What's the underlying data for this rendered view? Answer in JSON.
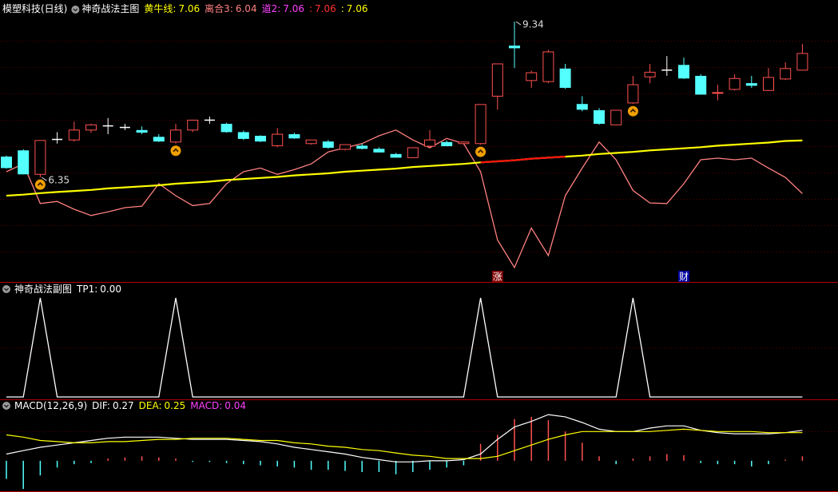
{
  "chart_data": [
    {
      "type": "candlestick",
      "title": "模塑科技(日线)",
      "subtitle": "神奇战法主图",
      "separator": ":",
      "ylim": [
        4.36,
        9.48
      ],
      "up_color": "#ff5050",
      "down_color": "#54ffff",
      "flat_color": "#ffffff",
      "candles": [
        [
          6.75,
          6.77,
          6.52,
          6.53
        ],
        [
          6.87,
          6.89,
          6.41,
          6.41
        ],
        [
          6.41,
          7.06,
          6.35,
          7.06
        ],
        [
          7.07,
          7.22,
          7.0,
          7.08
        ],
        [
          7.07,
          7.42,
          7.04,
          7.26
        ],
        [
          7.26,
          7.38,
          7.21,
          7.36
        ],
        [
          7.33,
          7.49,
          7.18,
          7.34
        ],
        [
          7.3,
          7.38,
          7.26,
          7.31
        ],
        [
          7.26,
          7.33,
          7.18,
          7.21
        ],
        [
          7.13,
          7.18,
          7.03,
          7.04
        ],
        [
          7.03,
          7.38,
          7.0,
          7.26
        ],
        [
          7.26,
          7.45,
          7.22,
          7.45
        ],
        [
          7.45,
          7.52,
          7.38,
          7.45
        ],
        [
          7.38,
          7.4,
          7.21,
          7.22
        ],
        [
          7.22,
          7.25,
          7.07,
          7.09
        ],
        [
          7.15,
          7.16,
          7.03,
          7.04
        ],
        [
          6.96,
          7.3,
          6.93,
          7.18
        ],
        [
          7.18,
          7.21,
          7.09,
          7.1
        ],
        [
          7.0,
          7.07,
          6.98,
          7.07
        ],
        [
          7.04,
          7.07,
          6.9,
          6.92
        ],
        [
          6.89,
          6.98,
          6.87,
          6.98
        ],
        [
          6.96,
          7.0,
          6.89,
          6.9
        ],
        [
          6.9,
          6.93,
          6.83,
          6.83
        ],
        [
          6.8,
          6.82,
          6.73,
          6.73
        ],
        [
          6.73,
          6.92,
          6.72,
          6.92
        ],
        [
          6.95,
          7.26,
          6.93,
          7.07
        ],
        [
          7.03,
          7.06,
          6.95,
          6.95
        ],
        [
          7.0,
          7.04,
          6.98,
          7.03
        ],
        [
          7.0,
          7.75,
          6.98,
          7.75
        ],
        [
          7.91,
          8.53,
          7.65,
          8.53
        ],
        [
          8.88,
          9.34,
          8.45,
          8.83
        ],
        [
          8.21,
          8.4,
          8.07,
          8.36
        ],
        [
          8.19,
          8.8,
          8.16,
          8.76
        ],
        [
          8.44,
          8.53,
          8.05,
          8.07
        ],
        [
          7.76,
          7.91,
          7.62,
          7.65
        ],
        [
          7.64,
          7.68,
          7.36,
          7.38
        ],
        [
          7.36,
          7.64,
          7.36,
          7.64
        ],
        [
          7.78,
          8.3,
          7.76,
          8.13
        ],
        [
          8.28,
          8.53,
          8.16,
          8.37
        ],
        [
          8.42,
          8.68,
          8.3,
          8.41
        ],
        [
          8.51,
          8.65,
          8.24,
          8.25
        ],
        [
          8.3,
          8.33,
          7.94,
          7.94
        ],
        [
          7.97,
          8.13,
          7.83,
          7.98
        ],
        [
          8.04,
          8.33,
          8.02,
          8.25
        ],
        [
          8.16,
          8.3,
          8.07,
          8.11
        ],
        [
          8.02,
          8.45,
          8.01,
          8.27
        ],
        [
          8.24,
          8.56,
          8.22,
          8.44
        ],
        [
          8.41,
          8.91,
          8.4,
          8.73
        ]
      ],
      "series": [
        {
          "color": "#ff8080",
          "values": [
            6.46,
            6.61,
            5.85,
            5.89,
            5.74,
            5.62,
            5.69,
            5.77,
            5.8,
            6.23,
            6.0,
            5.81,
            5.85,
            6.23,
            6.46,
            6.53,
            6.41,
            6.5,
            6.61,
            6.84,
            6.92,
            7.0,
            7.15,
            7.26,
            7.07,
            6.92,
            7.1,
            7.0,
            6.46,
            5.15,
            4.62,
            5.38,
            4.85,
            6.0,
            6.53,
            7.03,
            6.69,
            6.1,
            5.86,
            5.85,
            6.23,
            6.69,
            6.72,
            6.69,
            6.72,
            6.53,
            6.35,
            6.04
          ]
        },
        {
          "color": "#ffff00",
          "values": [
            6.0,
            6.02,
            6.05,
            6.07,
            6.09,
            6.11,
            6.14,
            6.16,
            6.18,
            6.2,
            6.23,
            6.25,
            6.27,
            6.3,
            6.32,
            6.34,
            6.36,
            6.39,
            6.41,
            6.43,
            6.46,
            6.48,
            6.5,
            6.52,
            6.55,
            6.57,
            6.59,
            6.61,
            6.64,
            6.66,
            6.68,
            6.71,
            6.73,
            6.75,
            6.77,
            6.8,
            6.82,
            6.84,
            6.87,
            6.89,
            6.91,
            6.93,
            6.96,
            6.98,
            7.0,
            7.02,
            7.05,
            7.06
          ]
        },
        {
          "color": "#ff1010",
          "values": [
            null,
            null,
            null,
            null,
            null,
            null,
            null,
            null,
            null,
            null,
            null,
            null,
            null,
            null,
            null,
            null,
            null,
            null,
            null,
            null,
            null,
            null,
            null,
            null,
            null,
            null,
            null,
            null,
            6.64,
            6.66,
            6.68,
            6.71,
            6.73,
            6.75,
            null,
            null,
            null,
            null,
            null,
            null,
            null,
            null,
            null,
            null,
            null,
            null,
            null,
            null
          ]
        }
      ],
      "legend": [
        {
          "name": "黄牛线",
          "value": 7.06,
          "color": "#ffff00"
        },
        {
          "name": "离合3",
          "value": 6.04,
          "color": "#ff8080"
        },
        {
          "name": "道2",
          "value": 7.06,
          "color": "#ff40ff"
        },
        {
          "value": 7.06,
          "color": "#ff3030"
        },
        {
          "value": 7.06,
          "color": "#ffff00"
        }
      ],
      "annotations": [
        {
          "index": 30,
          "value": 9.34
        },
        {
          "index": 2,
          "value": 6.35
        }
      ],
      "signals": [
        2,
        10,
        28,
        37
      ],
      "markers": [
        {
          "index": 29,
          "text": "涨",
          "color": "#800000"
        },
        {
          "index": 40,
          "text": "财",
          "color": "#0000a0"
        }
      ]
    },
    {
      "type": "line",
      "title": "神奇战法副图",
      "separator": ":",
      "ylim": [
        0,
        1
      ],
      "series": [
        {
          "name": "TP1",
          "color": "#ffffff",
          "legend_value": {
            "value": 0,
            "label": "0.00"
          },
          "values": [
            0,
            0,
            1,
            0,
            0,
            0,
            0,
            0,
            0,
            0,
            1,
            0,
            0,
            0,
            0,
            0,
            0,
            0,
            0,
            0,
            0,
            0,
            0,
            0,
            0,
            0,
            0,
            0,
            1,
            0,
            0,
            0,
            0,
            0,
            0,
            0,
            0,
            1,
            0,
            0,
            0,
            0,
            0,
            0,
            0,
            0,
            0,
            0
          ]
        }
      ]
    },
    {
      "type": "macd",
      "title": "MACD(12,26,9)",
      "separator": ":",
      "ylim": [
        -0.27,
        0.51
      ],
      "up_color": "#ff5050",
      "down_color": "#54ffff",
      "series": [
        {
          "name": "DIF",
          "color": "#ffffff",
          "values": [
            0.06,
            0.09,
            0.12,
            0.14,
            0.16,
            0.18,
            0.2,
            0.21,
            0.21,
            0.21,
            0.2,
            0.19,
            0.19,
            0.19,
            0.18,
            0.17,
            0.15,
            0.12,
            0.1,
            0.08,
            0.06,
            0.03,
            0.01,
            -0.01,
            -0.01,
            0,
            0,
            0.01,
            0.06,
            0.19,
            0.3,
            0.35,
            0.41,
            0.39,
            0.34,
            0.28,
            0.26,
            0.26,
            0.29,
            0.31,
            0.31,
            0.27,
            0.25,
            0.24,
            0.24,
            0.24,
            0.25,
            0.27
          ]
        },
        {
          "name": "DEA",
          "color": "#ffff00",
          "values": [
            0.23,
            0.21,
            0.18,
            0.17,
            0.16,
            0.16,
            0.17,
            0.17,
            0.18,
            0.19,
            0.19,
            0.2,
            0.2,
            0.2,
            0.19,
            0.18,
            0.18,
            0.16,
            0.15,
            0.13,
            0.12,
            0.1,
            0.09,
            0.07,
            0.05,
            0.04,
            0.02,
            0.02,
            0.02,
            0.04,
            0.09,
            0.14,
            0.19,
            0.23,
            0.26,
            0.26,
            0.26,
            0.26,
            0.26,
            0.27,
            0.28,
            0.27,
            0.26,
            0.26,
            0.26,
            0.25,
            0.25,
            0.25
          ]
        },
        {
          "name": "MACD",
          "color": "#ff40ff",
          "values": [
            -0.16,
            -0.25,
            -0.13,
            -0.06,
            -0.03,
            -0.02,
            0.02,
            0.03,
            0.04,
            0.03,
            0.02,
            -0.01,
            -0.01,
            -0.02,
            -0.03,
            -0.04,
            -0.05,
            -0.06,
            -0.08,
            -0.08,
            -0.09,
            -0.1,
            -0.1,
            -0.12,
            -0.1,
            -0.08,
            -0.06,
            -0.04,
            0.15,
            0.23,
            0.37,
            0.39,
            0.36,
            0.26,
            0.16,
            0.04,
            -0.03,
            0.02,
            0.04,
            0.06,
            0.05,
            -0.02,
            -0.03,
            -0.03,
            -0.05,
            -0.03,
            0.01,
            0.04
          ]
        }
      ]
    }
  ]
}
